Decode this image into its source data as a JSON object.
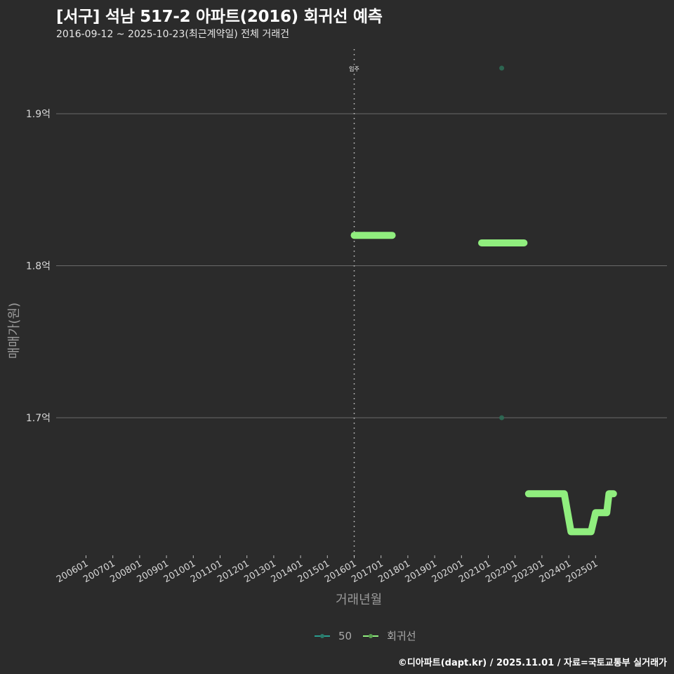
{
  "header": {
    "title": "[서구] 석남 517-2 아파트(2016) 회귀선 예측",
    "subtitle": "2016-09-12 ~ 2025-10-23(최근계약일) 전체 거래건"
  },
  "axes": {
    "x_label": "거래년월",
    "y_label": "매매가(원)"
  },
  "legend": {
    "items": [
      {
        "label": "50",
        "color": "#2a9d8f"
      },
      {
        "label": "회귀선",
        "color": "#90ee7e"
      }
    ]
  },
  "caption": "©디아파트(dapt.kr) / 2025.11.01 / 자료=국토교통부 실거래가",
  "colors": {
    "background": "#2b2b2b",
    "grid": "#6a6a6a",
    "regression": "#90ee7e",
    "points": "#2e6b55",
    "annotation_line": "#cccccc"
  },
  "chart_data": {
    "type": "line",
    "title": "[서구] 석남 517-2 아파트(2016) 회귀선 예측",
    "subtitle": "2016-09-12 ~ 2025-10-23(최근계약일) 전체 거래건",
    "xlabel": "거래년월",
    "ylabel": "매매가(원)",
    "x_ticks": [
      "200601",
      "200701",
      "200801",
      "200901",
      "201001",
      "201101",
      "201201",
      "201301",
      "201401",
      "201501",
      "201601",
      "201701",
      "201801",
      "201901",
      "202001",
      "202101",
      "202201",
      "202301",
      "202401",
      "202501"
    ],
    "y_ticks": [
      {
        "value": 170000000,
        "label": "1.7억"
      },
      {
        "value": 180000000,
        "label": "1.8억"
      },
      {
        "value": 190000000,
        "label": "1.9억"
      }
    ],
    "ylim": [
      161000000,
      194500000
    ],
    "grid": {
      "horizontal": true,
      "vertical": false
    },
    "legend_position": "bottom",
    "annotations": [
      {
        "type": "vline",
        "x": "201601",
        "label": "입주",
        "style": "dotted"
      }
    ],
    "series": [
      {
        "name": "50",
        "type": "scatter",
        "points": [
          {
            "x": "2021-07",
            "y": 193000000
          },
          {
            "x": "2021-07",
            "y": 170000000
          }
        ]
      },
      {
        "name": "회귀선",
        "type": "line",
        "segments": [
          [
            {
              "x": "2016-01",
              "y": 182000000
            },
            {
              "x": "2017-06",
              "y": 182000000
            }
          ],
          [
            {
              "x": "2020-10",
              "y": 181500000
            },
            {
              "x": "2022-05",
              "y": 181500000
            }
          ],
          [
            {
              "x": "2022-07",
              "y": 165000000
            },
            {
              "x": "2023-11",
              "y": 165000000
            },
            {
              "x": "2024-02",
              "y": 162500000
            },
            {
              "x": "2024-11",
              "y": 162500000
            },
            {
              "x": "2025-01",
              "y": 163750000
            },
            {
              "x": "2025-06",
              "y": 163750000
            },
            {
              "x": "2025-07",
              "y": 165000000
            },
            {
              "x": "2025-09",
              "y": 165000000
            }
          ]
        ]
      }
    ]
  }
}
